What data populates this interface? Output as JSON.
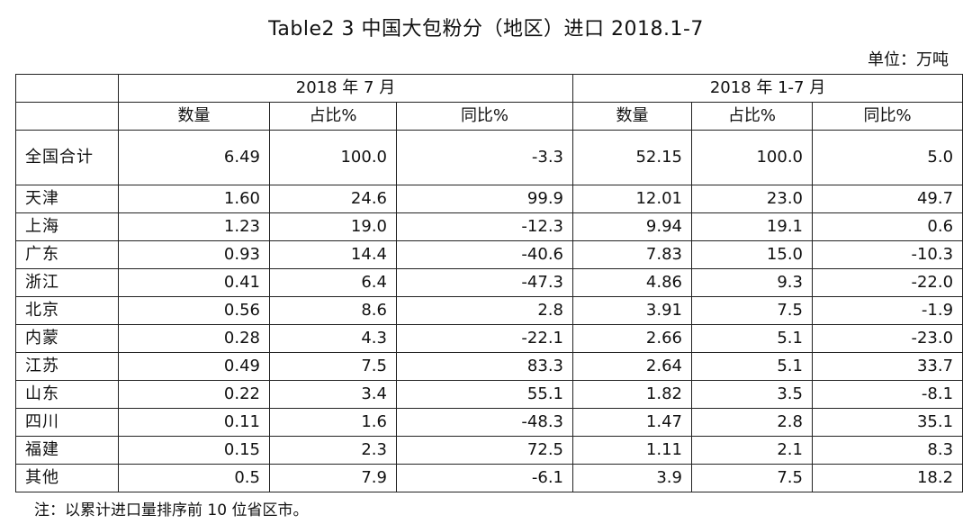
{
  "title": "Table2 3 中国大包粉分（地区）进口 2018.1-7",
  "unit": "单位：万吨",
  "periods": [
    "2018 年 7 月",
    "2018 年 1-7 月"
  ],
  "columns": [
    "数量",
    "占比%",
    "同比%",
    "数量",
    "占比%",
    "同比%"
  ],
  "rows": [
    {
      "name": "全国合计",
      "qty_m": "6.49",
      "share_m": "100.0",
      "yoy_m": "-3.3",
      "qty_ytd": "52.15",
      "share_ytd": "100.0",
      "yoy_ytd": "5.0"
    },
    {
      "name": "天津",
      "qty_m": "1.60",
      "share_m": "24.6",
      "yoy_m": "99.9",
      "qty_ytd": "12.01",
      "share_ytd": "23.0",
      "yoy_ytd": "49.7"
    },
    {
      "name": "上海",
      "qty_m": "1.23",
      "share_m": "19.0",
      "yoy_m": "-12.3",
      "qty_ytd": "9.94",
      "share_ytd": "19.1",
      "yoy_ytd": "0.6"
    },
    {
      "name": "广东",
      "qty_m": "0.93",
      "share_m": "14.4",
      "yoy_m": "-40.6",
      "qty_ytd": "7.83",
      "share_ytd": "15.0",
      "yoy_ytd": "-10.3"
    },
    {
      "name": "浙江",
      "qty_m": "0.41",
      "share_m": "6.4",
      "yoy_m": "-47.3",
      "qty_ytd": "4.86",
      "share_ytd": "9.3",
      "yoy_ytd": "-22.0"
    },
    {
      "name": "北京",
      "qty_m": "0.56",
      "share_m": "8.6",
      "yoy_m": "2.8",
      "qty_ytd": "3.91",
      "share_ytd": "7.5",
      "yoy_ytd": "-1.9"
    },
    {
      "name": "内蒙",
      "qty_m": "0.28",
      "share_m": "4.3",
      "yoy_m": "-22.1",
      "qty_ytd": "2.66",
      "share_ytd": "5.1",
      "yoy_ytd": "-23.0"
    },
    {
      "name": "江苏",
      "qty_m": "0.49",
      "share_m": "7.5",
      "yoy_m": "83.3",
      "qty_ytd": "2.64",
      "share_ytd": "5.1",
      "yoy_ytd": "33.7"
    },
    {
      "name": "山东",
      "qty_m": "0.22",
      "share_m": "3.4",
      "yoy_m": "55.1",
      "qty_ytd": "1.82",
      "share_ytd": "3.5",
      "yoy_ytd": "-8.1"
    },
    {
      "name": "四川",
      "qty_m": "0.11",
      "share_m": "1.6",
      "yoy_m": "-48.3",
      "qty_ytd": "1.47",
      "share_ytd": "2.8",
      "yoy_ytd": "35.1"
    },
    {
      "name": "福建",
      "qty_m": "0.15",
      "share_m": "2.3",
      "yoy_m": "72.5",
      "qty_ytd": "1.11",
      "share_ytd": "2.1",
      "yoy_ytd": "8.3"
    },
    {
      "name": "其他",
      "qty_m": "0.5",
      "share_m": "7.9",
      "yoy_m": "-6.1",
      "qty_ytd": "3.9",
      "share_ytd": "7.5",
      "yoy_ytd": "18.2"
    }
  ],
  "note": "注：以累计进口量排序前 10 位省区市。"
}
